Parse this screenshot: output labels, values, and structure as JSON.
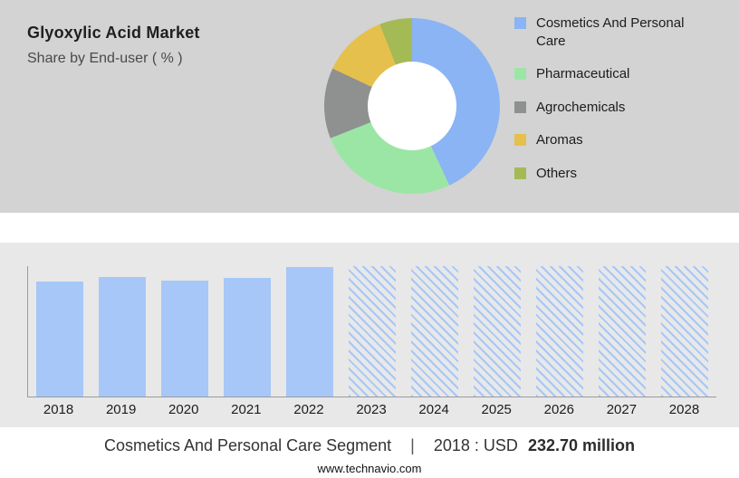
{
  "header": {
    "title": "Glyoxylic Acid Market",
    "subtitle": "Share by End-user ( % )"
  },
  "caption": {
    "segment": "Cosmetics And Personal Care Segment",
    "separator": "|",
    "value_prefix": "2018 : USD",
    "value": "232.70 million"
  },
  "footer": {
    "url": "www.technavio.com"
  },
  "colors": {
    "top_panel_bg": "#d3d3d3",
    "chart_panel_bg": "#e8e8e8",
    "bar_blue": "#a6c7f7",
    "axis_gray": "#9b9b9b"
  },
  "chart_data": [
    {
      "type": "pie",
      "title": "Glyoxylic Acid Market",
      "subtitle": "Share by End-user ( % )",
      "legend_position": "right",
      "donut": true,
      "segments": [
        {
          "label": "Cosmetics And Personal Care",
          "value": 43,
          "color": "#8ab4f3"
        },
        {
          "label": "Pharmaceutical",
          "value": 26,
          "color": "#9ce6a5"
        },
        {
          "label": "Agrochemicals",
          "value": 13,
          "color": "#8f9191"
        },
        {
          "label": "Aromas",
          "value": 12,
          "color": "#e6c04d"
        },
        {
          "label": "Others",
          "value": 6,
          "color": "#a4ba55"
        }
      ]
    },
    {
      "type": "bar",
      "title": "Market size by year (index, unlabeled axis)",
      "categories": [
        "2018",
        "2019",
        "2020",
        "2021",
        "2022",
        "2023",
        "2024",
        "2025",
        "2026",
        "2027",
        "2028"
      ],
      "values": [
        88,
        92,
        89,
        91,
        99,
        100,
        100,
        100,
        100,
        100,
        100
      ],
      "forecast": [
        false,
        false,
        false,
        false,
        false,
        true,
        true,
        true,
        true,
        true,
        true
      ],
      "ylim": [
        0,
        100
      ],
      "grid": false,
      "bar_color": "#a6c7f7",
      "note": "2023-2028 rendered as hatched forecast columns"
    }
  ]
}
